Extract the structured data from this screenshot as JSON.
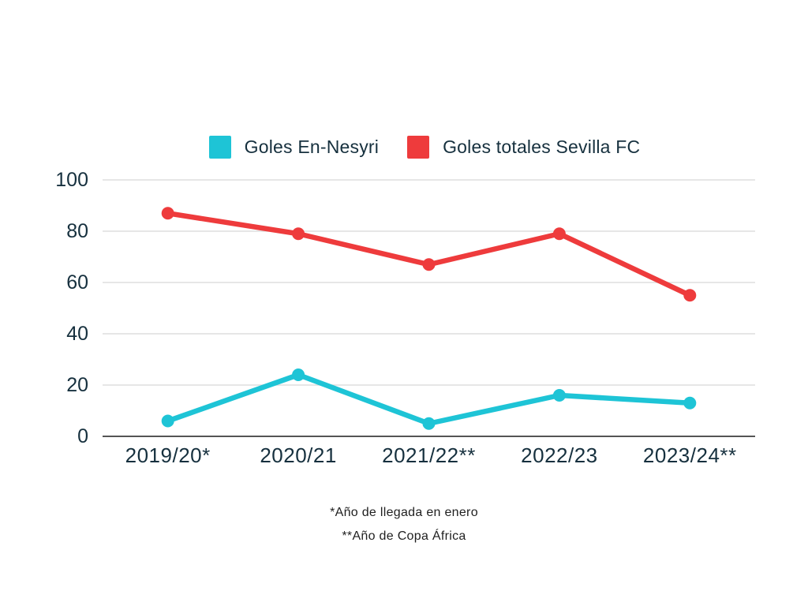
{
  "page": {
    "background": "#ffffff"
  },
  "legend": {
    "items": [
      {
        "label": "Goles En-Nesyri",
        "color": "#1ec4d6"
      },
      {
        "label": "Goles totales Sevilla FC",
        "color": "#ee3b3c"
      }
    ]
  },
  "chart_data": {
    "type": "line",
    "title": "",
    "xlabel": "",
    "ylabel": "",
    "categories": [
      "2019/20*",
      "2020/21",
      "2021/22**",
      "2022/23",
      "2023/24**"
    ],
    "series": [
      {
        "name": "Goles En-Nesyri",
        "color": "#1ec4d6",
        "values": [
          6,
          24,
          5,
          16,
          13
        ]
      },
      {
        "name": "Goles totales Sevilla FC",
        "color": "#ee3b3c",
        "values": [
          87,
          79,
          67,
          79,
          55
        ]
      }
    ],
    "ylim": [
      0,
      100
    ],
    "yticks": [
      0,
      20,
      40,
      60,
      80,
      100
    ],
    "grid": true,
    "legend_position": "top"
  },
  "footnotes": {
    "line1": "*Año de llegada en enero",
    "line2": "**Año de Copa África"
  },
  "colors": {
    "text": "#16303e",
    "grid": "#dedede",
    "axis": "#555555",
    "footnote": "#1f1f1f"
  }
}
